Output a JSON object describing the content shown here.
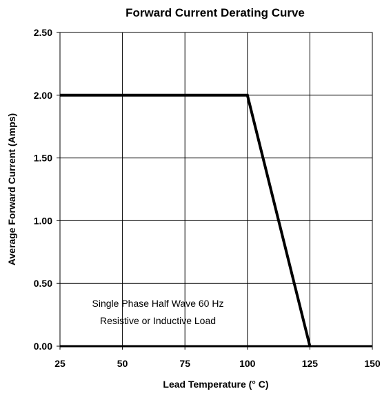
{
  "chart_data": {
    "type": "line",
    "title": "Forward Current Derating Curve",
    "xlabel": "Lead Temperature (° C)",
    "ylabel": "Average Forward Current (Amps)",
    "xlim": [
      25,
      150
    ],
    "ylim": [
      0,
      2.5
    ],
    "x_ticks": [
      25,
      50,
      75,
      100,
      125,
      150
    ],
    "x_tick_labels": [
      "25",
      "50",
      "75",
      "100",
      "125",
      "150"
    ],
    "y_ticks": [
      0,
      0.5,
      1.0,
      1.5,
      2.0,
      2.5
    ],
    "y_tick_labels": [
      "0.00",
      "0.50",
      "1.00",
      "1.50",
      "2.00",
      "2.50"
    ],
    "grid": true,
    "series": [
      {
        "x": [
          25,
          100,
          125
        ],
        "y": [
          2.0,
          2.0,
          0.0
        ],
        "color": "#000000"
      }
    ],
    "annotations": [
      "Single Phase Half Wave 60 Hz",
      "Resistive or Inductive Load"
    ]
  }
}
